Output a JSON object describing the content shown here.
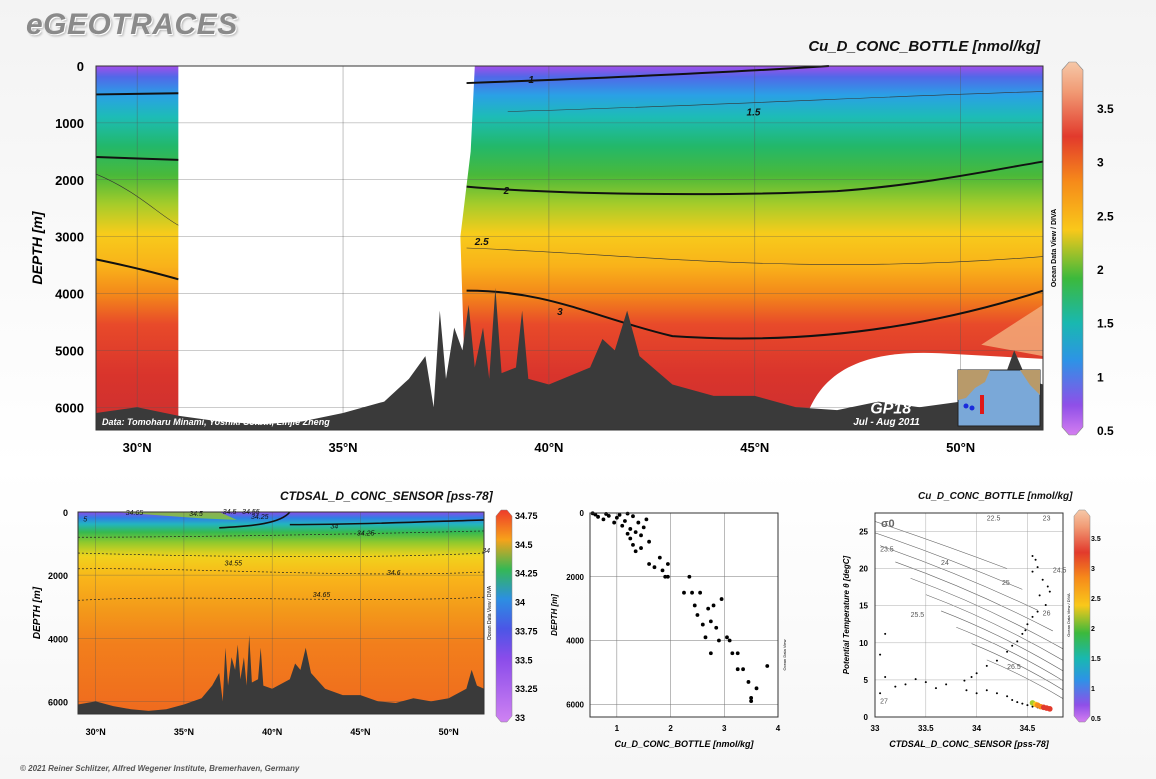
{
  "brand": "eGEOTRACES",
  "credit": "© 2021 Reiner Schlitzer, Alfred Wegener Institute, Bremerhaven, Germany",
  "watermark": "Ocean Data View / DIVA",
  "watermark_short": "Ocean Data View",
  "colors": {
    "land": "#3a3a3a",
    "contour": "#111111",
    "frame": "#333333",
    "bg": "#ffffff"
  },
  "chart_data": [
    {
      "type": "heatmap",
      "title": "Cu_D_CONC_BOTTLE [nmol/kg]",
      "ylabel": "DEPTH [m]",
      "xlabel": "",
      "xlim": [
        29,
        52
      ],
      "ylim": [
        6400,
        0
      ],
      "x_ticks": [
        {
          "v": 30,
          "label": "30°N"
        },
        {
          "v": 35,
          "label": "35°N"
        },
        {
          "v": 40,
          "label": "40°N"
        },
        {
          "v": 45,
          "label": "45°N"
        },
        {
          "v": 50,
          "label": "50°N"
        }
      ],
      "y_ticks": [
        0,
        1000,
        2000,
        3000,
        4000,
        5000,
        6000
      ],
      "colorbar": {
        "min": 0.5,
        "max": 3.9,
        "ticks": [
          0.5,
          1,
          1.5,
          2,
          2.5,
          3,
          3.5
        ]
      },
      "contour_labels": [
        {
          "x": 39.5,
          "y": 300,
          "label": "1"
        },
        {
          "x": 44.8,
          "y": 870,
          "label": "1.5"
        },
        {
          "x": 38.9,
          "y": 2250,
          "label": "2"
        },
        {
          "x": 38.2,
          "y": 3150,
          "label": "2.5"
        },
        {
          "x": 40.2,
          "y": 4380,
          "label": "3"
        }
      ],
      "source": "Data: Tomoharu Minami, Yoshiki Sohrin, Linjie Zheng",
      "section": "GP18",
      "period": "Jul - Aug 2011",
      "grid": true
    },
    {
      "type": "heatmap",
      "title": "CTDSAL_D_CONC_SENSOR [pss-78]",
      "ylabel": "DEPTH [m]",
      "xlim": [
        29,
        52
      ],
      "ylim": [
        6400,
        0
      ],
      "x_ticks": [
        {
          "v": 30,
          "label": "30°N"
        },
        {
          "v": 35,
          "label": "35°N"
        },
        {
          "v": 40,
          "label": "40°N"
        },
        {
          "v": 45,
          "label": "45°N"
        },
        {
          "v": 50,
          "label": "50°N"
        }
      ],
      "y_ticks": [
        0,
        2000,
        4000,
        6000
      ],
      "colorbar": {
        "min": 33,
        "max": 34.75,
        "ticks": [
          33,
          33.25,
          33.5,
          33.75,
          34,
          34.25,
          34.5,
          34.75
        ]
      },
      "contour_labels": [
        {
          "x": 29.3,
          "y": 300,
          "label": "5"
        },
        {
          "x": 31.7,
          "y": 90,
          "label": "34.65"
        },
        {
          "x": 35.3,
          "y": 120,
          "label": "34.5"
        },
        {
          "x": 37.2,
          "y": 60,
          "label": "34.5"
        },
        {
          "x": 38.3,
          "y": 70,
          "label": "34.55"
        },
        {
          "x": 38.8,
          "y": 220,
          "label": "34.25"
        },
        {
          "x": 43.3,
          "y": 520,
          "label": "34"
        },
        {
          "x": 44.8,
          "y": 750,
          "label": "34.25"
        },
        {
          "x": 51.9,
          "y": 1300,
          "label": "34"
        },
        {
          "x": 37.3,
          "y": 1700,
          "label": "34.55"
        },
        {
          "x": 46.5,
          "y": 2000,
          "label": "34.6"
        },
        {
          "x": 42.3,
          "y": 2700,
          "label": "34.65"
        }
      ],
      "grid": true
    },
    {
      "type": "scatter",
      "title": "",
      "xlabel": "Cu_D_CONC_BOTTLE [nmol/kg]",
      "ylabel": "DEPTH [m]",
      "xlim": [
        0.5,
        4
      ],
      "ylim": [
        6400,
        0
      ],
      "x_ticks": [
        1,
        2,
        3,
        4
      ],
      "y_ticks": [
        0,
        2000,
        4000,
        6000
      ],
      "grid": true,
      "points": [
        [
          0.55,
          10
        ],
        [
          0.6,
          50
        ],
        [
          0.65,
          120
        ],
        [
          0.75,
          200
        ],
        [
          0.8,
          30
        ],
        [
          0.85,
          90
        ],
        [
          0.95,
          300
        ],
        [
          1.0,
          150
        ],
        [
          1.05,
          60
        ],
        [
          1.1,
          400
        ],
        [
          1.15,
          250
        ],
        [
          1.2,
          20
        ],
        [
          1.25,
          500
        ],
        [
          1.3,
          100
        ],
        [
          1.35,
          600
        ],
        [
          1.4,
          300
        ],
        [
          1.25,
          800
        ],
        [
          1.3,
          1000
        ],
        [
          1.2,
          650
        ],
        [
          1.45,
          700
        ],
        [
          1.5,
          450
        ],
        [
          1.55,
          200
        ],
        [
          1.35,
          1200
        ],
        [
          1.45,
          1100
        ],
        [
          1.6,
          900
        ],
        [
          1.6,
          1600
        ],
        [
          1.7,
          1700
        ],
        [
          1.8,
          1400
        ],
        [
          1.85,
          1800
        ],
        [
          1.9,
          2000
        ],
        [
          1.95,
          2000
        ],
        [
          1.95,
          1600
        ],
        [
          2.25,
          2500
        ],
        [
          2.35,
          2000
        ],
        [
          2.4,
          2500
        ],
        [
          2.45,
          2900
        ],
        [
          2.55,
          2500
        ],
        [
          2.5,
          3200
        ],
        [
          2.6,
          3500
        ],
        [
          2.65,
          3900
        ],
        [
          2.7,
          3000
        ],
        [
          2.75,
          3400
        ],
        [
          2.8,
          2900
        ],
        [
          2.85,
          3600
        ],
        [
          2.9,
          4000
        ],
        [
          2.75,
          4400
        ],
        [
          2.95,
          2700
        ],
        [
          3.05,
          3900
        ],
        [
          3.1,
          4000
        ],
        [
          3.15,
          4400
        ],
        [
          3.25,
          4400
        ],
        [
          3.35,
          4900
        ],
        [
          3.25,
          4900
        ],
        [
          3.45,
          5300
        ],
        [
          3.5,
          5800
        ],
        [
          3.5,
          5900
        ],
        [
          3.6,
          5500
        ],
        [
          3.8,
          4800
        ]
      ]
    },
    {
      "type": "scatter",
      "title": "Cu_D_CONC_BOTTLE [nmol/kg]",
      "xlabel": "CTDSAL_D_CONC_SENSOR [pss-78]",
      "ylabel": "Potential Temperature θ [degC]",
      "xlim": [
        33,
        34.85
      ],
      "ylim": [
        0,
        27.5
      ],
      "x_ticks": [
        33,
        33.5,
        34,
        34.5
      ],
      "y_ticks": [
        0,
        5,
        10,
        15,
        20,
        25
      ],
      "isopycnal_symbol": "σ0",
      "isopycnal_labels": [
        "22.5",
        "23",
        "23.5",
        "24",
        "24.5",
        "25",
        "25.5",
        "26",
        "26.5",
        "27"
      ],
      "colorbar": {
        "min": 0.5,
        "max": 3.9,
        "ticks": [
          0.5,
          1,
          1.5,
          2,
          2.5,
          3,
          3.5
        ]
      },
      "grid": true,
      "points": [
        [
          34.55,
          21.7
        ],
        [
          34.58,
          21.2
        ],
        [
          34.6,
          20.2
        ],
        [
          34.55,
          19.6
        ],
        [
          34.65,
          18.5
        ],
        [
          34.7,
          17.6
        ],
        [
          34.72,
          16.9
        ],
        [
          34.62,
          16.4
        ],
        [
          34.68,
          15.1
        ],
        [
          34.6,
          14.2
        ],
        [
          34.55,
          13.5
        ],
        [
          34.5,
          12.5
        ],
        [
          34.48,
          11.7
        ],
        [
          34.45,
          11.2
        ],
        [
          34.4,
          10.2
        ],
        [
          34.35,
          9.6
        ],
        [
          34.3,
          8.8
        ],
        [
          34.2,
          7.6
        ],
        [
          34.1,
          6.9
        ],
        [
          34.0,
          5.9
        ],
        [
          33.95,
          5.4
        ],
        [
          33.88,
          4.9
        ],
        [
          33.7,
          4.4
        ],
        [
          33.6,
          3.9
        ],
        [
          33.5,
          4.7
        ],
        [
          33.4,
          5.1
        ],
        [
          33.3,
          4.4
        ],
        [
          33.2,
          4.1
        ],
        [
          33.1,
          5.4
        ],
        [
          33.05,
          8.4
        ],
        [
          33.1,
          11.2
        ],
        [
          33.05,
          3.2
        ],
        [
          33.9,
          3.6
        ],
        [
          34.0,
          3.2
        ],
        [
          34.1,
          3.6
        ],
        [
          34.2,
          3.2
        ],
        [
          34.3,
          2.8
        ],
        [
          34.35,
          2.3
        ],
        [
          34.4,
          2.0
        ],
        [
          34.45,
          1.8
        ],
        [
          34.5,
          1.6
        ],
        [
          34.55,
          1.4
        ],
        [
          34.6,
          1.3
        ],
        [
          34.65,
          1.2
        ],
        [
          34.68,
          1.1
        ]
      ],
      "tail_points": [
        [
          34.55,
          1.9,
          2.1
        ],
        [
          34.58,
          1.7,
          2.4
        ],
        [
          34.6,
          1.6,
          2.7
        ],
        [
          34.63,
          1.4,
          3.0
        ],
        [
          34.66,
          1.3,
          3.2
        ],
        [
          34.69,
          1.2,
          3.4
        ],
        [
          34.72,
          1.1,
          3.6
        ]
      ]
    }
  ]
}
